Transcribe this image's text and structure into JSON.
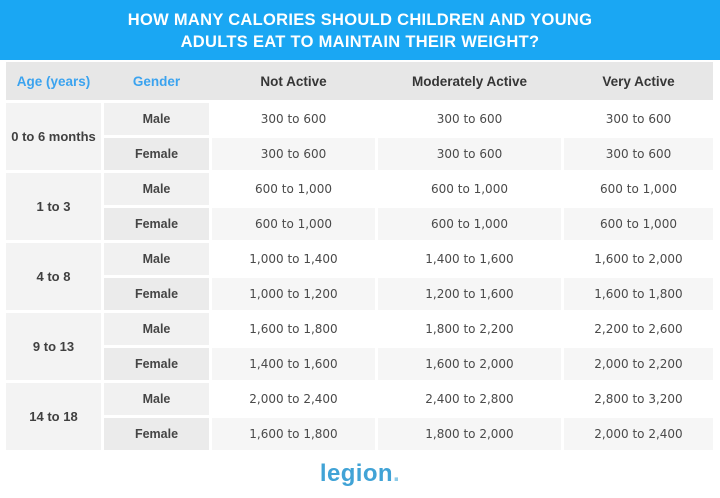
{
  "banner": {
    "title_line1": "HOW MANY CALORIES SHOULD CHILDREN AND YOUNG",
    "title_line2": "ADULTS EAT TO MAINTAIN THEIR WEIGHT?",
    "bg_color": "#1aa7f3",
    "text_color": "#ffffff"
  },
  "table": {
    "columns": [
      "Age (years)",
      "Gender",
      "Not Active",
      "Moderately Active",
      "Very Active"
    ],
    "groups": [
      {
        "age": "0 to 6 months",
        "rows": [
          {
            "gender": "Male",
            "not_active": "300 to 600",
            "moderately_active": "300 to 600",
            "very_active": "300 to 600"
          },
          {
            "gender": "Female",
            "not_active": "300 to 600",
            "moderately_active": "300 to 600",
            "very_active": "300 to 600"
          }
        ]
      },
      {
        "age": "1 to 3",
        "rows": [
          {
            "gender": "Male",
            "not_active": "600 to 1,000",
            "moderately_active": "600 to 1,000",
            "very_active": "600 to 1,000"
          },
          {
            "gender": "Female",
            "not_active": "600 to 1,000",
            "moderately_active": "600 to 1,000",
            "very_active": "600 to 1,000"
          }
        ]
      },
      {
        "age": "4 to 8",
        "rows": [
          {
            "gender": "Male",
            "not_active": "1,000 to 1,400",
            "moderately_active": "1,400 to 1,600",
            "very_active": "1,600 to 2,000"
          },
          {
            "gender": "Female",
            "not_active": "1,000 to 1,200",
            "moderately_active": "1,200 to 1,600",
            "very_active": "1,600 to 1,800"
          }
        ]
      },
      {
        "age": "9 to 13",
        "rows": [
          {
            "gender": "Male",
            "not_active": "1,600 to 1,800",
            "moderately_active": "1,800 to 2,200",
            "very_active": "2,200 to 2,600"
          },
          {
            "gender": "Female",
            "not_active": "1,400 to 1,600",
            "moderately_active": "1,600 to 2,000",
            "very_active": "2,000 to 2,200"
          }
        ]
      },
      {
        "age": "14 to 18",
        "rows": [
          {
            "gender": "Male",
            "not_active": "2,000 to 2,400",
            "moderately_active": "2,400 to 2,800",
            "very_active": "2,800 to 3,200"
          },
          {
            "gender": "Female",
            "not_active": "1,600 to 1,800",
            "moderately_active": "1,800 to 2,000",
            "very_active": "2,000 to 2,400"
          }
        ]
      }
    ]
  },
  "footer": {
    "logo_text": "legion",
    "logo_dot": ".",
    "logo_color": "#41a3d6"
  },
  "chart_data": {
    "type": "table",
    "title": "HOW MANY CALORIES SHOULD CHILDREN AND YOUNG ADULTS EAT TO MAINTAIN THEIR WEIGHT?",
    "columns": [
      "Age (years)",
      "Gender",
      "Not Active",
      "Moderately Active",
      "Very Active"
    ],
    "rows": [
      [
        "0 to 6 months",
        "Male",
        "300 to 600",
        "300 to 600",
        "300 to 600"
      ],
      [
        "0 to 6 months",
        "Female",
        "300 to 600",
        "300 to 600",
        "300 to 600"
      ],
      [
        "1 to 3",
        "Male",
        "600 to 1,000",
        "600 to 1,000",
        "600 to 1,000"
      ],
      [
        "1 to 3",
        "Female",
        "600 to 1,000",
        "600 to 1,000",
        "600 to 1,000"
      ],
      [
        "4 to 8",
        "Male",
        "1,000 to 1,400",
        "1,400 to 1,600",
        "1,600 to 2,000"
      ],
      [
        "4 to 8",
        "Female",
        "1,000 to 1,200",
        "1,200 to 1,600",
        "1,600 to 1,800"
      ],
      [
        "9 to 13",
        "Male",
        "1,600 to 1,800",
        "1,800 to 2,200",
        "2,200 to 2,600"
      ],
      [
        "9 to 13",
        "Female",
        "1,400 to 1,600",
        "1,600 to 2,000",
        "2,000 to 2,200"
      ],
      [
        "14 to 18",
        "Male",
        "2,000 to 2,400",
        "2,400 to 2,800",
        "2,800 to 3,200"
      ],
      [
        "14 to 18",
        "Female",
        "1,600 to 1,800",
        "1,800 to 2,000",
        "2,000 to 2,400"
      ]
    ]
  }
}
